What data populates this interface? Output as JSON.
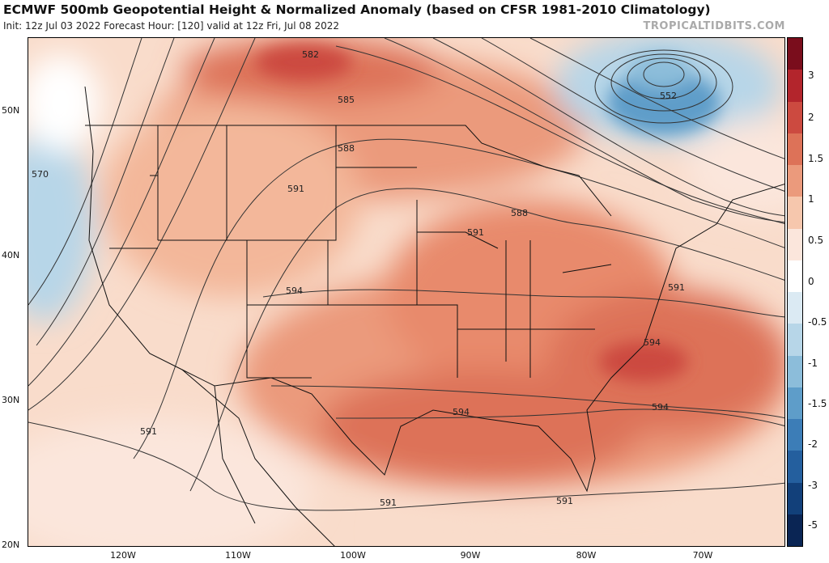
{
  "header": {
    "title": "ECMWF 500mb Geopotential Height & Normalized Anomaly (based on CFSR 1981-2010 Climatology)",
    "subtitle": "Init: 12z Jul 03 2022   Forecast Hour: [120]   valid at 12z Fri, Jul 08 2022",
    "credit": "TROPICALTIDBITS.COM"
  },
  "map": {
    "region": "Continental United States",
    "lat_labels": [
      "50N",
      "40N",
      "30N",
      "20N"
    ],
    "lon_labels": [
      "120W",
      "110W",
      "100W",
      "90W",
      "80W",
      "70W"
    ],
    "contour_labels": [
      "582",
      "585",
      "588",
      "591",
      "594",
      "570",
      "552",
      "588",
      "591",
      "594",
      "594",
      "594",
      "591",
      "591",
      "591",
      "591"
    ]
  },
  "colorbar": {
    "labels": [
      "3",
      "2",
      "1.5",
      "1",
      "0.5",
      "0",
      "-0.5",
      "-1",
      "-1.5",
      "-2",
      "-3",
      "-5"
    ],
    "colors": [
      "#7a0d1c",
      "#b3252c",
      "#cc4a40",
      "#dd7258",
      "#eb9a7c",
      "#f6c7ad",
      "#fbe6dc",
      "#ffffff",
      "#dbeaf3",
      "#b7d6e8",
      "#8cbdda",
      "#5e9dc9",
      "#3c7db7",
      "#245f9e",
      "#12407a",
      "#0a2554"
    ]
  }
}
